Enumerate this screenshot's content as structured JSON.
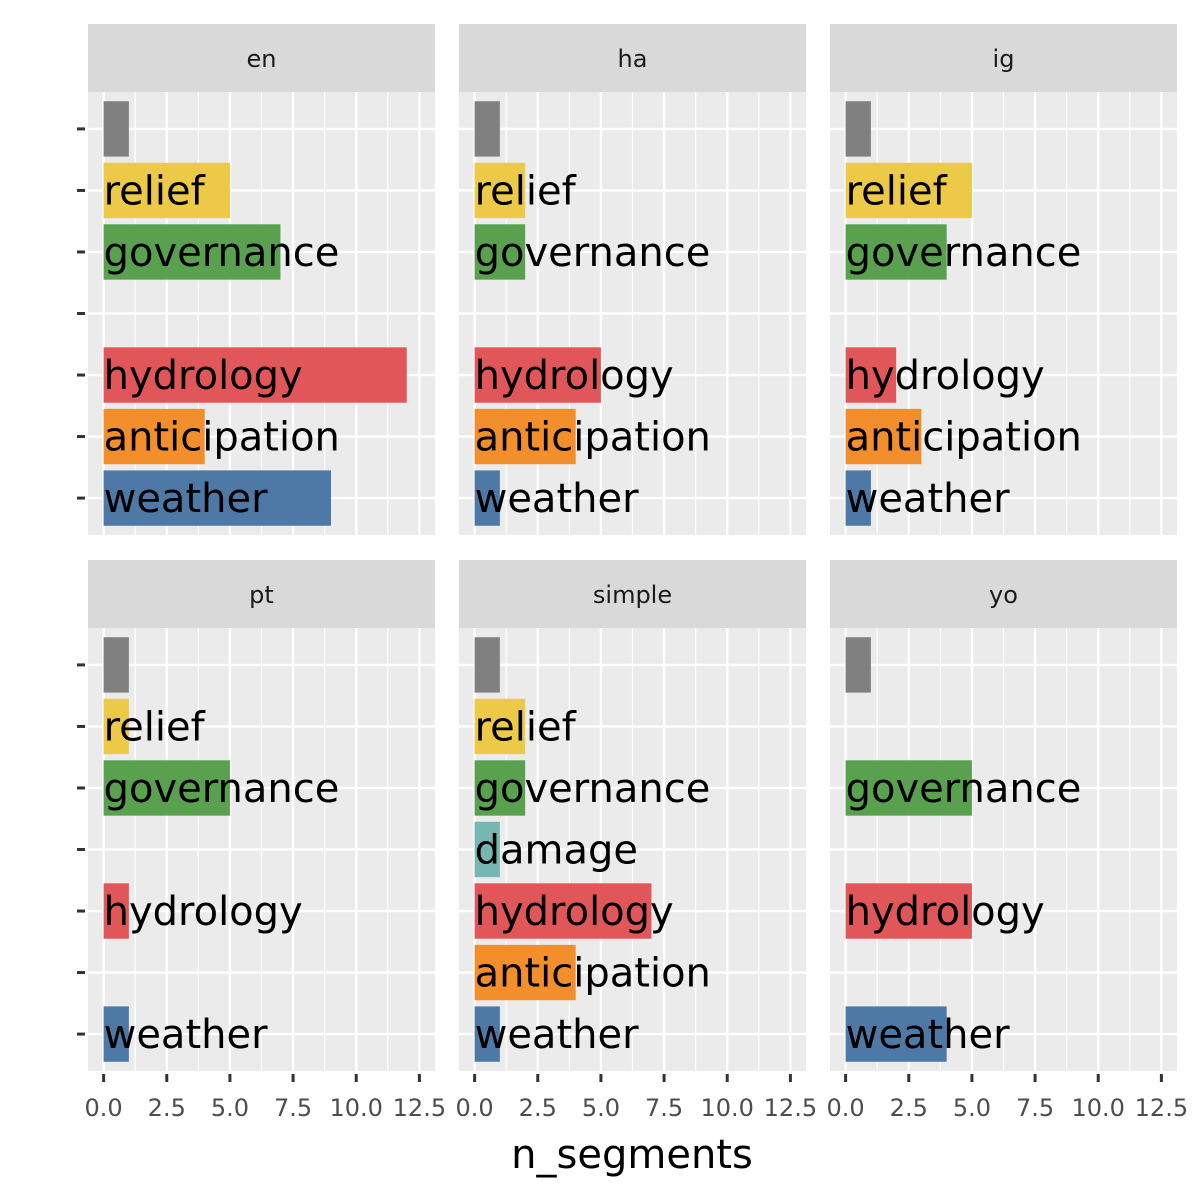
{
  "chart_data": {
    "type": "bar",
    "orientation": "horizontal",
    "facet_layout": "3 columns x 2 rows",
    "xlabel": "n_segments",
    "ylabel": "",
    "xlim": [
      0,
      12.5
    ],
    "x_ticks": [
      "0.0",
      "2.5",
      "5.0",
      "7.5",
      "10.0",
      "12.5"
    ],
    "x_tick_values": [
      0,
      2.5,
      5,
      7.5,
      10,
      12.5
    ],
    "categories": [
      "weather",
      "anticipation",
      "hydrology",
      "damage",
      "governance",
      "relief",
      "NA"
    ],
    "category_labels": {
      "weather": "weather",
      "anticipation": "anticipation",
      "hydrology": "hydrology",
      "damage": "damage",
      "governance": "governance",
      "relief": "relief",
      "NA": ""
    },
    "colors": {
      "weather": "#4e79a7",
      "anticipation": "#f28e2b",
      "hydrology": "#e15759",
      "damage": "#76b7b2",
      "governance": "#59a14f",
      "relief": "#edc948",
      "NA": "#808080"
    },
    "grid": true,
    "legend": "none",
    "panels": [
      {
        "name": "en",
        "values": {
          "weather": 9,
          "anticipation": 4,
          "hydrology": 12,
          "governance": 7,
          "relief": 5,
          "NA": 1
        }
      },
      {
        "name": "ha",
        "values": {
          "weather": 1,
          "anticipation": 4,
          "hydrology": 5,
          "governance": 2,
          "relief": 2,
          "NA": 1
        }
      },
      {
        "name": "ig",
        "values": {
          "weather": 1,
          "anticipation": 3,
          "hydrology": 2,
          "governance": 4,
          "relief": 5,
          "NA": 1
        }
      },
      {
        "name": "pt",
        "values": {
          "weather": 1,
          "hydrology": 1,
          "governance": 5,
          "relief": 1,
          "NA": 1
        }
      },
      {
        "name": "simple",
        "values": {
          "weather": 1,
          "anticipation": 4,
          "hydrology": 7,
          "damage": 1,
          "governance": 2,
          "relief": 2,
          "NA": 1
        }
      },
      {
        "name": "yo",
        "values": {
          "weather": 4,
          "hydrology": 5,
          "governance": 5,
          "NA": 1
        }
      }
    ]
  }
}
